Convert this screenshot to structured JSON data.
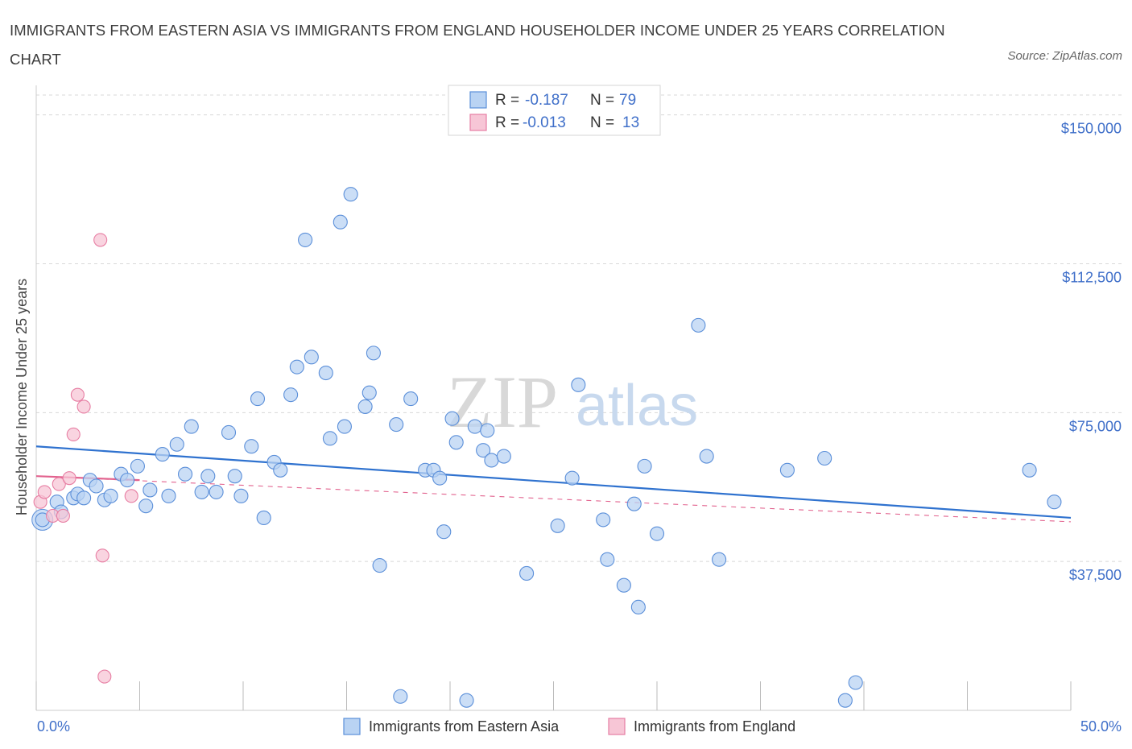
{
  "title": "IMMIGRANTS FROM EASTERN ASIA VS IMMIGRANTS FROM ENGLAND HOUSEHOLDER INCOME UNDER 25 YEARS CORRELATION CHART",
  "source": "Source: ZipAtlas.com",
  "watermark": {
    "zip": "ZIP",
    "atlas": "atlas"
  },
  "colors": {
    "blue": "#5b8fd9",
    "blue_fill": "#b9d3f3",
    "blue_line": "#2f72cf",
    "pink": "#e77ea3",
    "pink_fill": "#f7c6d6",
    "pink_line": "#e2628e",
    "grid": "#d8d8d8",
    "label": "#3f6fc9"
  },
  "legend": {
    "r_label": "R =",
    "n_label": "N =",
    "blue": {
      "r": "-0.187",
      "n": "79"
    },
    "pink": {
      "r": "-0.013",
      "n": "13"
    }
  },
  "bottom_legend": [
    "Immigrants from Eastern Asia",
    "Immigrants from England"
  ],
  "chart_data": {
    "type": "scatter",
    "xlabel": "",
    "ylabel": "Householder Income Under 25 years",
    "xlim": [
      0,
      50
    ],
    "ylim": [
      0,
      155000
    ],
    "x_tick_labels": [
      "0.0%",
      "50.0%"
    ],
    "y_ticks": [
      37500,
      75000,
      112500,
      150000
    ],
    "y_tick_labels": [
      "$37,500",
      "$75,000",
      "$112,500",
      "$150,000"
    ],
    "grid": true,
    "legend_position": "top-center",
    "series": [
      {
        "name": "Immigrants from Eastern Asia",
        "color": "#5b8fd9",
        "trend": {
          "x": [
            0,
            50
          ],
          "y": [
            66500,
            48500
          ]
        },
        "points": [
          [
            0.3,
            48000
          ],
          [
            1.0,
            52500
          ],
          [
            1.2,
            50000
          ],
          [
            1.8,
            53500
          ],
          [
            2.0,
            54500
          ],
          [
            2.3,
            53500
          ],
          [
            2.6,
            58000
          ],
          [
            2.9,
            56500
          ],
          [
            3.3,
            53000
          ],
          [
            3.6,
            54000
          ],
          [
            4.1,
            59500
          ],
          [
            4.4,
            58000
          ],
          [
            4.9,
            61500
          ],
          [
            5.3,
            51500
          ],
          [
            5.5,
            55500
          ],
          [
            6.1,
            64500
          ],
          [
            6.4,
            54000
          ],
          [
            6.8,
            67000
          ],
          [
            7.2,
            59500
          ],
          [
            7.5,
            71500
          ],
          [
            8.0,
            55000
          ],
          [
            8.3,
            59000
          ],
          [
            8.7,
            55000
          ],
          [
            9.3,
            70000
          ],
          [
            9.6,
            59000
          ],
          [
            9.9,
            54000
          ],
          [
            10.4,
            66500
          ],
          [
            10.7,
            78500
          ],
          [
            11.0,
            48500
          ],
          [
            11.5,
            62500
          ],
          [
            11.8,
            60500
          ],
          [
            12.3,
            79500
          ],
          [
            12.6,
            86500
          ],
          [
            13.0,
            118500
          ],
          [
            13.3,
            89000
          ],
          [
            14.0,
            85000
          ],
          [
            14.2,
            68500
          ],
          [
            14.7,
            123000
          ],
          [
            14.9,
            71500
          ],
          [
            15.2,
            130000
          ],
          [
            15.9,
            76500
          ],
          [
            16.1,
            80000
          ],
          [
            16.3,
            90000
          ],
          [
            16.6,
            36500
          ],
          [
            17.4,
            72000
          ],
          [
            17.6,
            3500
          ],
          [
            18.1,
            78500
          ],
          [
            18.8,
            60500
          ],
          [
            19.2,
            60500
          ],
          [
            19.5,
            58500
          ],
          [
            19.7,
            45000
          ],
          [
            20.1,
            73500
          ],
          [
            20.3,
            67500
          ],
          [
            20.8,
            2500
          ],
          [
            21.2,
            71500
          ],
          [
            21.6,
            65500
          ],
          [
            21.8,
            70500
          ],
          [
            22.0,
            63000
          ],
          [
            22.6,
            64000
          ],
          [
            23.7,
            34500
          ],
          [
            25.2,
            46500
          ],
          [
            25.9,
            58500
          ],
          [
            26.2,
            82000
          ],
          [
            27.4,
            48000
          ],
          [
            27.6,
            38000
          ],
          [
            28.4,
            31500
          ],
          [
            28.9,
            52000
          ],
          [
            29.1,
            26000
          ],
          [
            29.4,
            61500
          ],
          [
            30.0,
            44500
          ],
          [
            32.0,
            97000
          ],
          [
            32.4,
            64000
          ],
          [
            33.0,
            38000
          ],
          [
            36.3,
            60500
          ],
          [
            38.1,
            63500
          ],
          [
            39.1,
            2500
          ],
          [
            39.6,
            7000
          ],
          [
            48.0,
            60500
          ],
          [
            49.2,
            52500
          ]
        ]
      },
      {
        "name": "Immigrants from England",
        "color": "#e77ea3",
        "trend": {
          "x": [
            0,
            5.0
          ],
          "y": [
            59000,
            58000
          ]
        },
        "trend_dashed": {
          "x": [
            0,
            50
          ],
          "y": [
            59000,
            47500
          ]
        },
        "points": [
          [
            0.2,
            52500
          ],
          [
            0.4,
            55000
          ],
          [
            0.8,
            49000
          ],
          [
            1.1,
            57000
          ],
          [
            1.3,
            49000
          ],
          [
            1.6,
            58500
          ],
          [
            1.8,
            69500
          ],
          [
            2.0,
            79500
          ],
          [
            2.3,
            76500
          ],
          [
            3.1,
            118500
          ],
          [
            3.2,
            39000
          ],
          [
            3.3,
            8500
          ],
          [
            4.6,
            54000
          ]
        ]
      }
    ]
  }
}
